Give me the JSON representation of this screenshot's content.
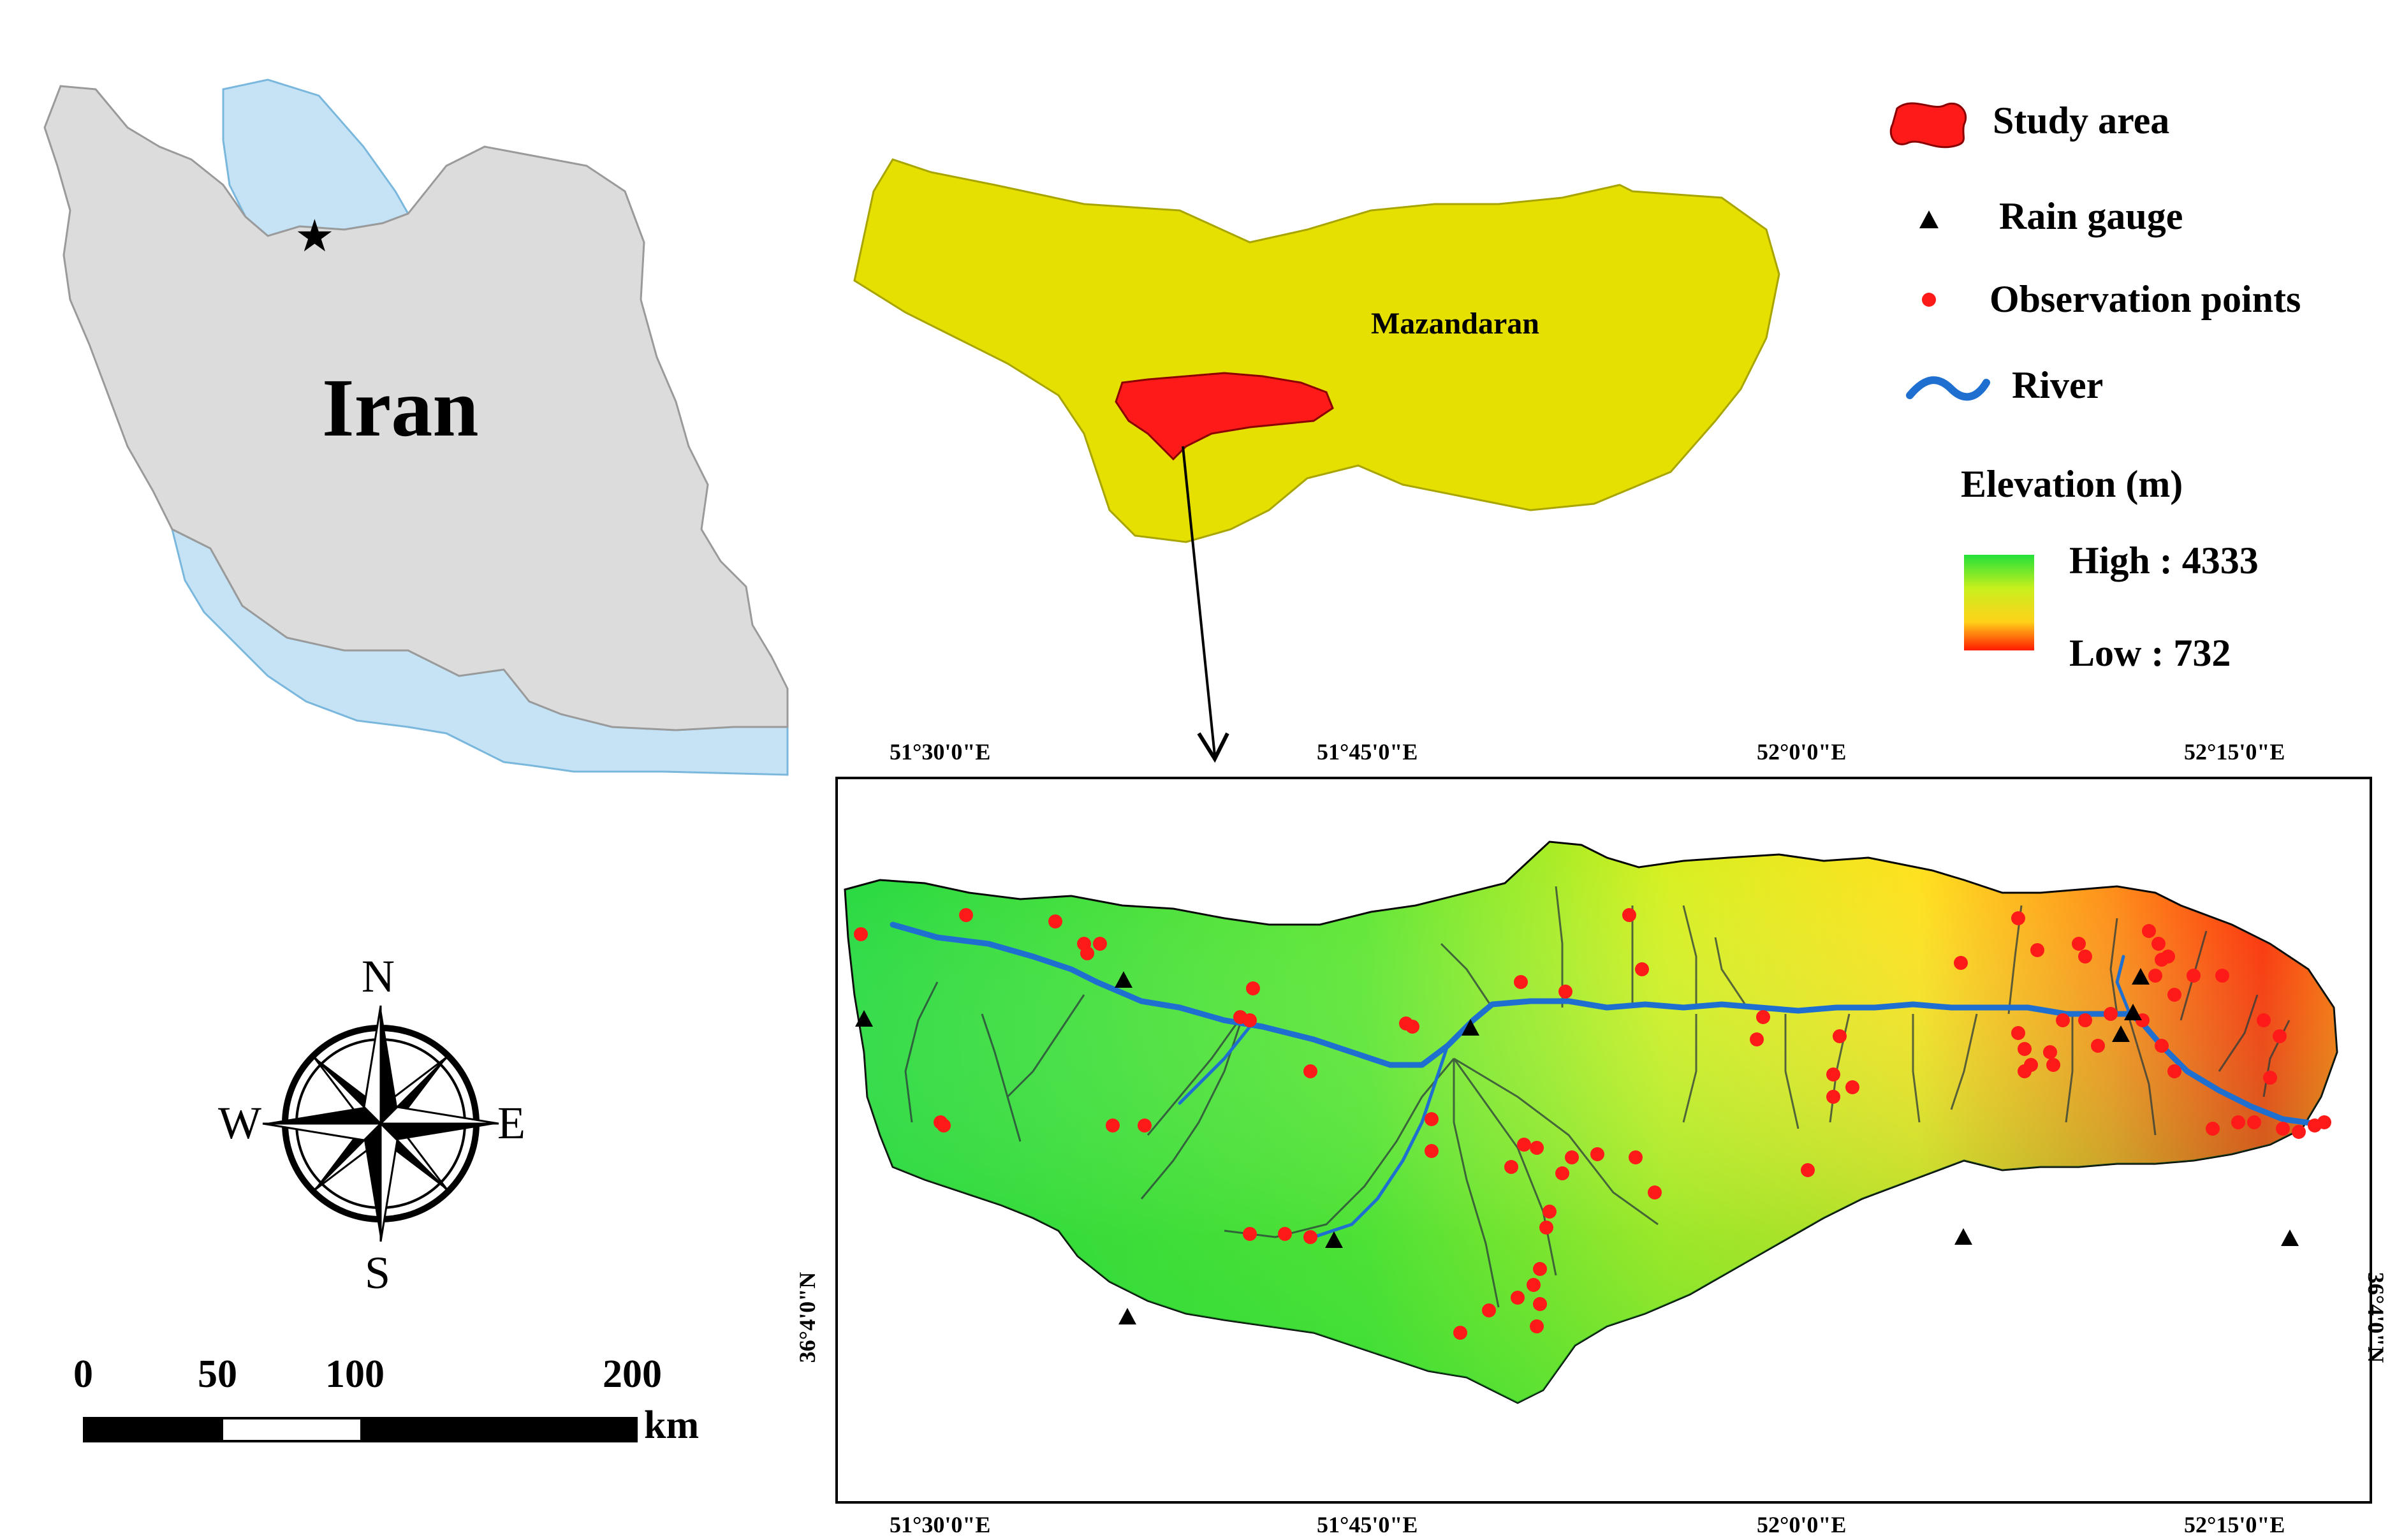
{
  "iran_inset": {
    "country_label": "Iran"
  },
  "province_inset": {
    "province_label": "Mazandaran"
  },
  "legend": {
    "items": [
      {
        "label": "Study area",
        "color": "#ff1a1a",
        "icon": "study-area-blob"
      },
      {
        "label": "Rain gauge",
        "color": "#000000",
        "icon": "triangle"
      },
      {
        "label": "Observation points",
        "color": "#ff1a1a",
        "icon": "dot"
      },
      {
        "label": "River",
        "color": "#1f6fd1",
        "icon": "wave-line"
      }
    ],
    "elevation_title": "Elevation (m)",
    "elevation_high": "High : 4333",
    "elevation_low": "Low : 732",
    "ramp_colors": [
      "#22e03a",
      "#c8f01c",
      "#ffd21a",
      "#ff1a00"
    ]
  },
  "compass": {
    "north": "N",
    "south": "S",
    "east": "E",
    "west": "W"
  },
  "scale_bar": {
    "ticks": [
      "0",
      "50",
      "100",
      "200"
    ],
    "unit": "km"
  },
  "main_map": {
    "top_ticks": [
      "51°30'0\"E",
      "51°45'0\"E",
      "52°0'0\"E",
      "52°15'0\"E"
    ],
    "bottom_ticks": [
      "51°30'0\"E",
      "51°45'0\"E",
      "52°0'0\"E",
      "52°15'0\"E"
    ],
    "left_tick": "36°4'0\"N",
    "right_tick": "36°4'0\"N"
  }
}
